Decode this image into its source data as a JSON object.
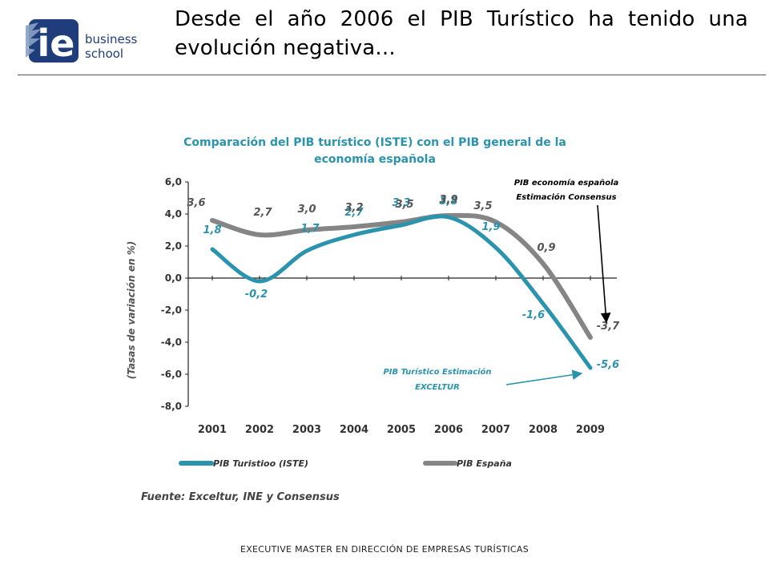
{
  "slide": {
    "title": "Desde el año 2006 el PIB Turístico ha tenido una evolución negativa...",
    "footer": "EXECUTIVE MASTER EN DIRECCIÓN DE EMPRESAS TURÍSTICAS"
  },
  "logo": {
    "mark": "ie",
    "line1": "business",
    "line2": "school",
    "color": "#1f3d7a"
  },
  "chart_data": {
    "type": "line",
    "title": "Comparación del PIB turístico (ISTE) con el PIB general de la economía española",
    "title_line1": "Comparación del PIB turístico (ISTE) con el  PIB general de la",
    "title_line2": "economía española",
    "ylabel": "(Tasas de variación en %)",
    "xlabel": "",
    "x": [
      "2001",
      "2002",
      "2003",
      "2004",
      "2005",
      "2006",
      "2007",
      "2008",
      "2009"
    ],
    "ylim": [
      -8,
      6
    ],
    "yticks": [
      "6,0",
      "4,0",
      "2,0",
      "0,0",
      "-2,0",
      "-4,0",
      "-6,0",
      "-8,0"
    ],
    "ytick_values": [
      6,
      4,
      2,
      0,
      -2,
      -4,
      -6,
      -8
    ],
    "series": [
      {
        "name": "PIB Turistioo (ISTE)",
        "color": "#2a93ad",
        "values": [
          1.8,
          -0.2,
          1.7,
          2.7,
          3.3,
          3.8,
          1.9,
          -1.6,
          -5.6
        ],
        "labels": [
          "1,8",
          "-0,2",
          "1,7",
          "2,7",
          "3,3",
          "3,8",
          "1,9",
          "-1,6",
          "-5,6"
        ]
      },
      {
        "name": "PIB España",
        "color": "#858585",
        "values": [
          3.6,
          2.7,
          3.0,
          3.2,
          3.5,
          3.9,
          3.5,
          0.9,
          -3.7
        ],
        "labels": [
          "3,6",
          "2,7",
          "3,0",
          "3,2",
          "3,5",
          "3,9",
          "3,5",
          "0,9",
          "-3,7"
        ]
      }
    ],
    "annotations": [
      {
        "text_lines": [
          "PIB economía española",
          "Estimación Consensus"
        ],
        "color": "#000000"
      },
      {
        "text_lines": [
          "PIB Turístico Estimación",
          "EXCELTUR"
        ],
        "color": "#2a93ad"
      }
    ],
    "source": "Fuente:  Exceltur, INE y Consensus",
    "title_color": "#2a93ad",
    "grid": false,
    "legend_position": "bottom"
  }
}
